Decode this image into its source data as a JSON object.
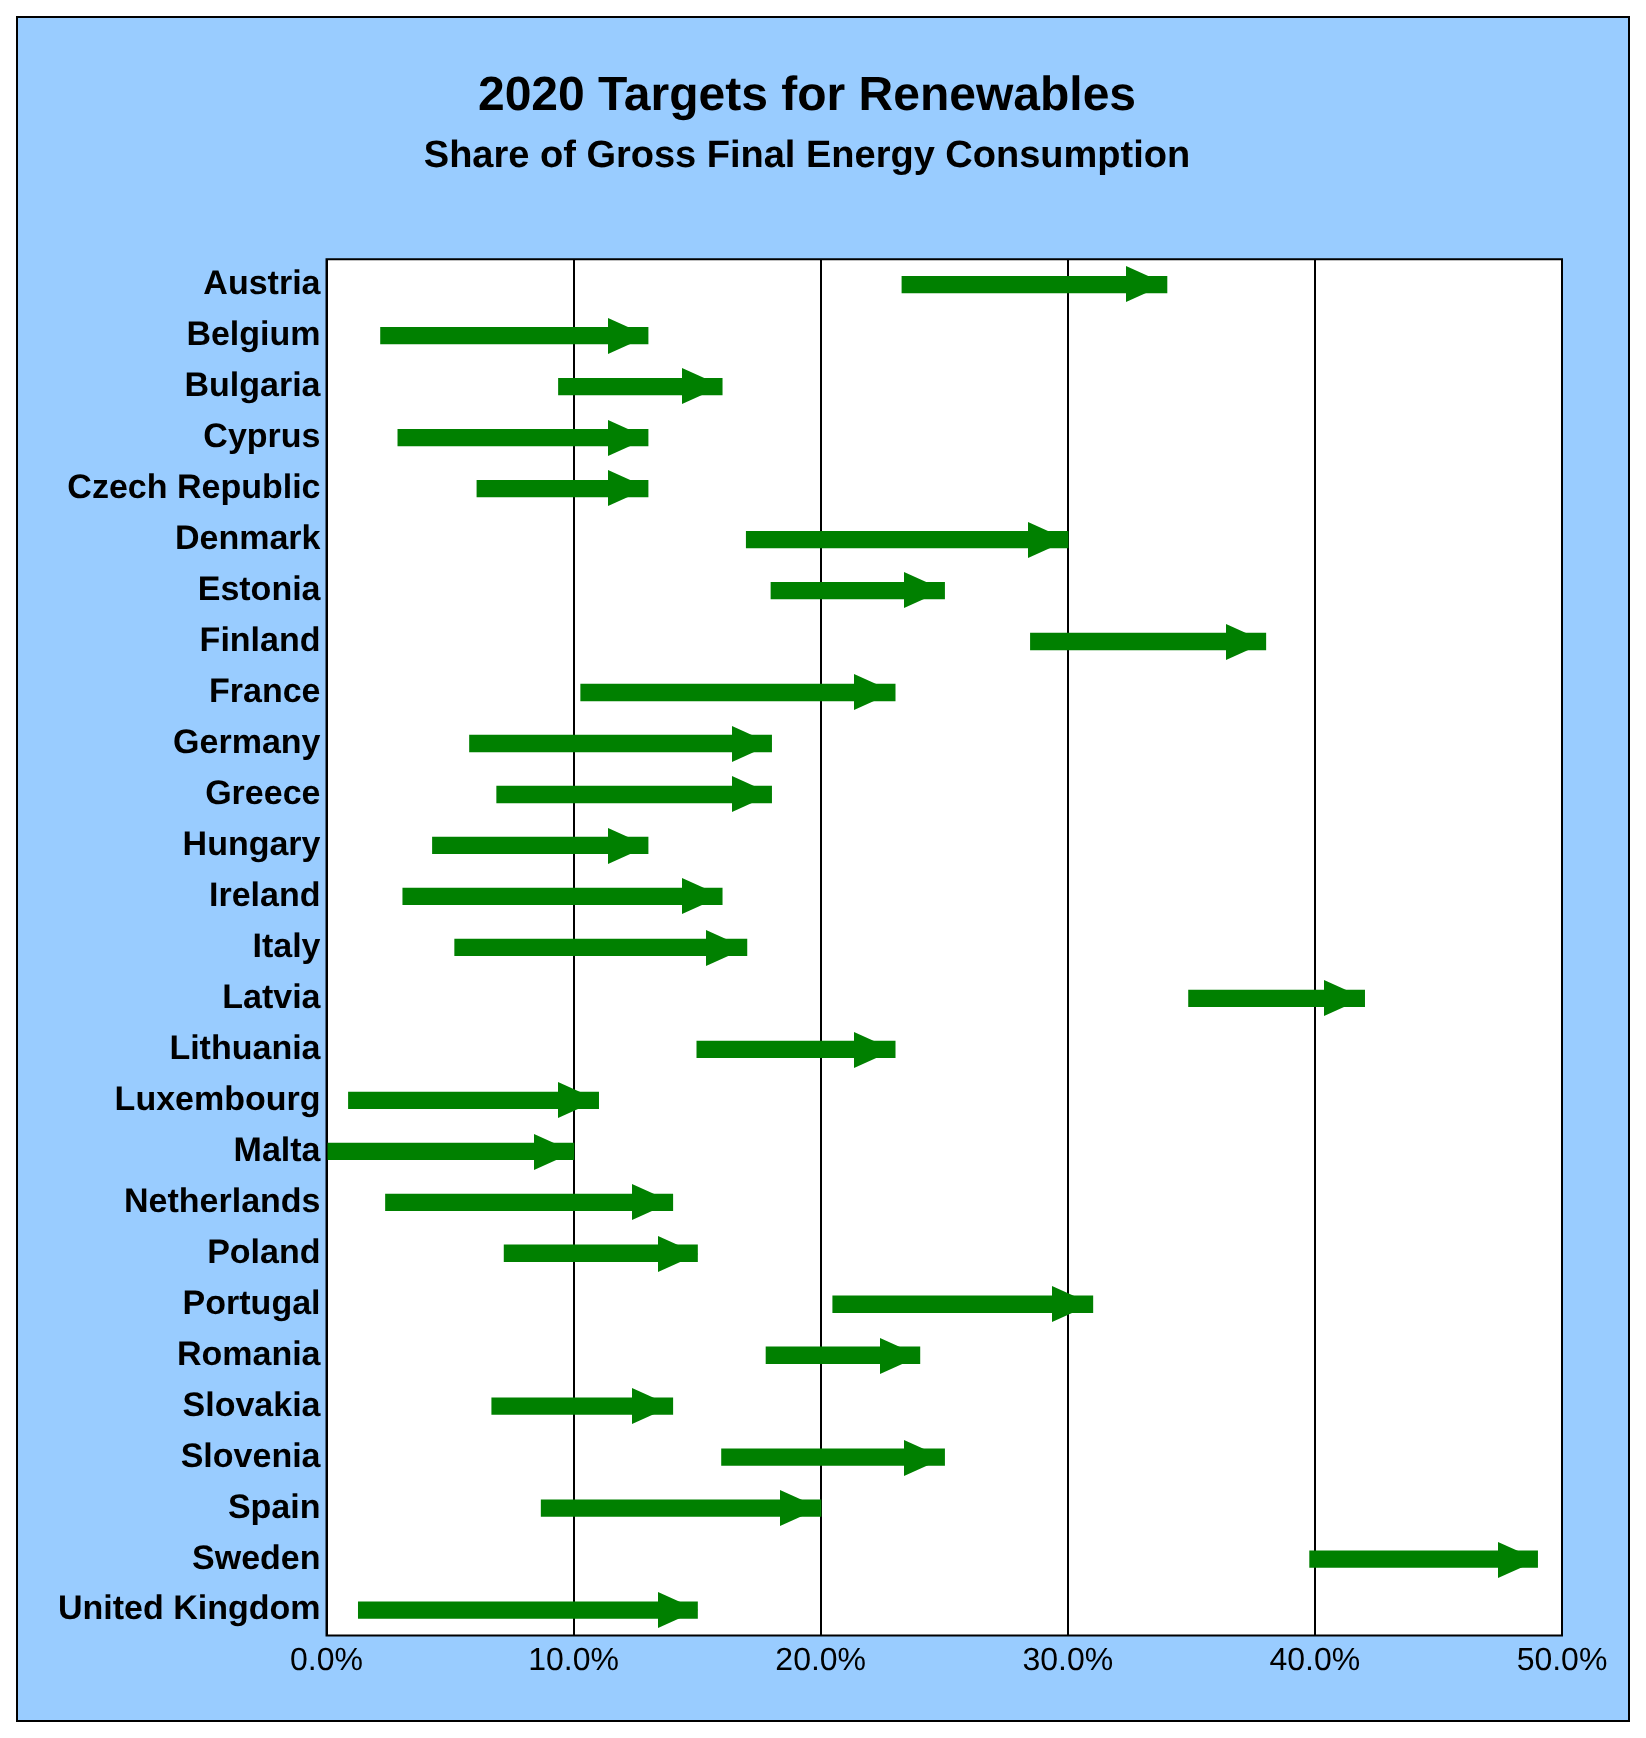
{
  "chart_data": {
    "type": "bar",
    "orientation": "horizontal",
    "title": "2020 Targets for Renewables",
    "subtitle": "Share of Gross Final Energy Consumption",
    "categories": [
      "Austria",
      "Belgium",
      "Bulgaria",
      "Cyprus",
      "Czech Republic",
      "Denmark",
      "Estonia",
      "Finland",
      "France",
      "Germany",
      "Greece",
      "Hungary",
      "Ireland",
      "Italy",
      "Latvia",
      "Lithuania",
      "Luxembourg",
      "Malta",
      "Netherlands",
      "Poland",
      "Portugal",
      "Romania",
      "Slovakia",
      "Slovenia",
      "Spain",
      "Sweden",
      "United Kingdom"
    ],
    "base": [
      23.3,
      2.2,
      9.4,
      2.9,
      6.1,
      17.0,
      18.0,
      28.5,
      10.3,
      5.8,
      6.9,
      4.3,
      3.1,
      5.2,
      34.9,
      15.0,
      0.9,
      0.0,
      2.4,
      7.2,
      20.5,
      17.8,
      6.7,
      16.0,
      8.7,
      39.8,
      1.3
    ],
    "values": [
      10.7,
      10.8,
      6.6,
      10.1,
      6.9,
      13.0,
      7.0,
      9.5,
      12.7,
      12.2,
      11.1,
      8.7,
      12.9,
      11.8,
      7.1,
      8.0,
      10.1,
      10.0,
      11.6,
      7.8,
      10.5,
      6.2,
      7.3,
      9.0,
      11.3,
      9.2,
      13.7
    ],
    "color": "#008000",
    "xlim": [
      0,
      50
    ],
    "xticks": [
      {
        "value": 0,
        "label": "0.0%"
      },
      {
        "value": 10,
        "label": "10.0%"
      },
      {
        "value": 20,
        "label": "20.0%"
      },
      {
        "value": 30,
        "label": "30.0%"
      },
      {
        "value": 40,
        "label": "40.0%"
      },
      {
        "value": 50,
        "label": "50.0%"
      }
    ],
    "grid": "x",
    "legend": false
  }
}
